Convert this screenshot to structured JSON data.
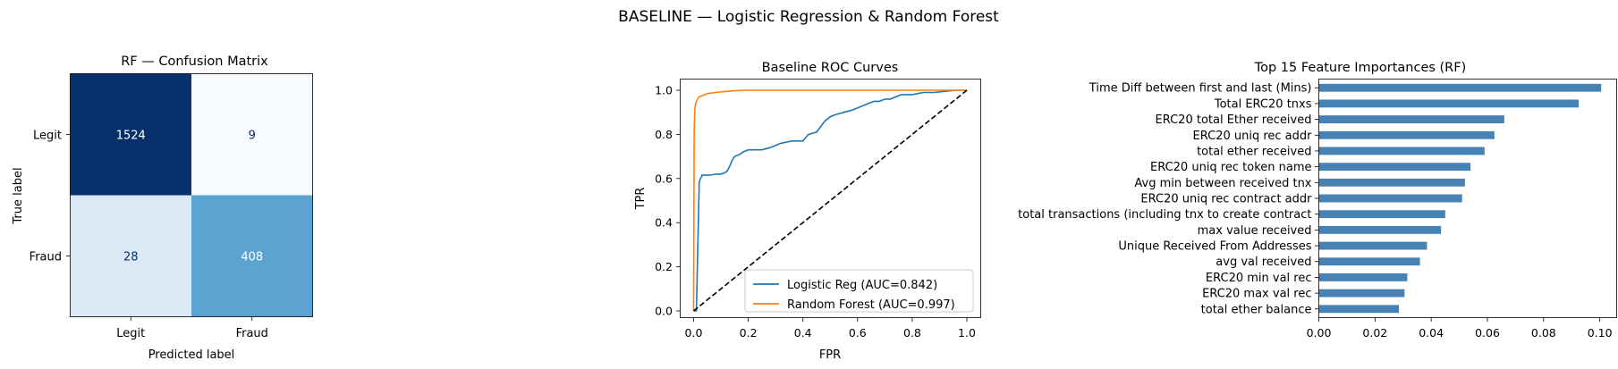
{
  "suptitle": "BASELINE — Logistic Regression & Random Forest",
  "chart_data": [
    {
      "type": "heatmap",
      "title": "RF — Confusion Matrix",
      "xlabel": "Predicted label",
      "ylabel": "True label",
      "x_categories": [
        "Legit",
        "Fraud"
      ],
      "y_categories": [
        "Legit",
        "Fraud"
      ],
      "values": [
        [
          1524,
          9
        ],
        [
          28,
          408
        ]
      ],
      "colormap": "Blues",
      "colors": {
        "low": "#f7fbff",
        "high": "#08306b"
      },
      "colorbar": false
    },
    {
      "type": "line",
      "title": "Baseline ROC Curves",
      "xlabel": "FPR",
      "ylabel": "TPR",
      "xlim": [
        0,
        1
      ],
      "ylim": [
        0,
        1
      ],
      "xticks": [
        "0.0",
        "0.2",
        "0.4",
        "0.6",
        "0.8",
        "1.0"
      ],
      "yticks": [
        "0.0",
        "0.2",
        "0.4",
        "0.6",
        "0.8",
        "1.0"
      ],
      "legend_position": "lower-right",
      "series": [
        {
          "name": "Logistic Reg (AUC=0.842)",
          "color": "#1f77b4",
          "x": [
            0,
            0.01,
            0.02,
            0.02,
            0.025,
            0.03,
            0.03,
            0.04,
            0.06,
            0.08,
            0.1,
            0.12,
            0.13,
            0.14,
            0.15,
            0.17,
            0.18,
            0.2,
            0.22,
            0.25,
            0.28,
            0.32,
            0.36,
            0.4,
            0.42,
            0.45,
            0.48,
            0.5,
            0.52,
            0.55,
            0.58,
            0.6,
            0.62,
            0.64,
            0.66,
            0.68,
            0.7,
            0.72,
            0.74,
            0.76,
            0.8,
            0.84,
            0.88,
            0.92,
            0.96,
            1.0
          ],
          "y": [
            0,
            0.0,
            0.55,
            0.58,
            0.6,
            0.61,
            0.615,
            0.615,
            0.615,
            0.62,
            0.62,
            0.63,
            0.65,
            0.68,
            0.7,
            0.71,
            0.72,
            0.73,
            0.73,
            0.73,
            0.74,
            0.76,
            0.77,
            0.77,
            0.8,
            0.81,
            0.86,
            0.88,
            0.89,
            0.9,
            0.91,
            0.92,
            0.93,
            0.94,
            0.95,
            0.95,
            0.96,
            0.96,
            0.97,
            0.98,
            0.98,
            0.99,
            0.99,
            0.995,
            1.0,
            1.0
          ]
        },
        {
          "name": "Random Forest (AUC=0.997)",
          "color": "#ff7f0e",
          "x": [
            0,
            0.002,
            0.004,
            0.006,
            0.01,
            0.015,
            0.02,
            0.03,
            0.05,
            0.08,
            0.12,
            0.18,
            0.25,
            0.35,
            0.5,
            0.7,
            1.0
          ],
          "y": [
            0,
            0.8,
            0.9,
            0.93,
            0.95,
            0.96,
            0.97,
            0.975,
            0.985,
            0.99,
            0.995,
            1.0,
            1.0,
            1.0,
            1.0,
            1.0,
            1.0
          ]
        },
        {
          "name": "",
          "color": "#000000",
          "dashed": true,
          "x": [
            0,
            1
          ],
          "y": [
            0,
            1
          ]
        }
      ]
    },
    {
      "type": "bar",
      "orientation": "horizontal",
      "title": "Top 15 Feature Importances (RF)",
      "xlim": [
        0,
        0.106
      ],
      "xticks": [
        "0.00",
        "0.02",
        "0.04",
        "0.06",
        "0.08",
        "0.10"
      ],
      "color": "#4682b4",
      "categories": [
        "Time Diff between first and last (Mins)",
        "Total ERC20 tnxs",
        "ERC20 total Ether received",
        "ERC20 uniq rec addr",
        "total ether received",
        "ERC20 uniq rec token name",
        "Avg min between received tnx",
        "ERC20 uniq rec contract addr",
        "total transactions (including tnx to create contract",
        "max value received ",
        "Unique Received From Addresses",
        "avg val received",
        "ERC20 min val rec",
        "ERC20 max val rec",
        "total ether balance"
      ],
      "values": [
        0.1005,
        0.0925,
        0.066,
        0.0625,
        0.059,
        0.054,
        0.052,
        0.051,
        0.045,
        0.0435,
        0.0385,
        0.036,
        0.0315,
        0.0305,
        0.0285
      ]
    }
  ]
}
